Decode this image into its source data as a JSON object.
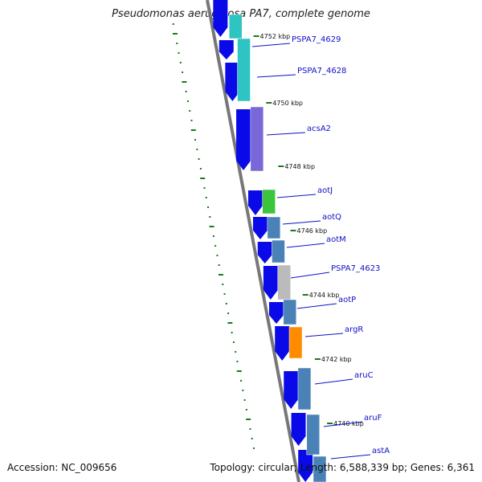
{
  "title": "Pseudomonas aeruginosa PA7, complete genome",
  "footer": {
    "accession": "Accession: NC_009656",
    "topology": "Topology: circular; Length: 6,588,339 bp; Genes: 6,361"
  },
  "colors": {
    "background": "#ffffff",
    "backbone": "#777777",
    "cds_arrow": "#0a0ae8",
    "gc_track": "#1a7a1a",
    "label_text": "#1010c8",
    "leader_line": "#1010c8",
    "tick": "#1a7a1a"
  },
  "scale_labels": [
    "4752 kbp",
    "4750 kbp",
    "4748 kbp",
    "4746 kbp",
    "4744 kbp",
    "4742 kbp",
    "4740 kbp"
  ],
  "genes": [
    {
      "name": "PSPA7_4629",
      "color": "#2ec4c4"
    },
    {
      "name": "PSPA7_4628",
      "color": "#2ec4c4"
    },
    {
      "name": "acsA2",
      "color": "#7b68d8"
    },
    {
      "name": "aotJ",
      "color": "#3cc43c"
    },
    {
      "name": "aotQ",
      "color": "#4a82b8"
    },
    {
      "name": "aotM",
      "color": "#4a82b8"
    },
    {
      "name": "PSPA7_4623",
      "color": "#bbbbbb"
    },
    {
      "name": "aotP",
      "color": "#4a82b8"
    },
    {
      "name": "argR",
      "color": "#ff8c00"
    },
    {
      "name": "aruC",
      "color": "#4a82b8"
    },
    {
      "name": "aruF",
      "color": "#4a82b8"
    },
    {
      "name": "astA",
      "color": "#4a82b8"
    }
  ]
}
